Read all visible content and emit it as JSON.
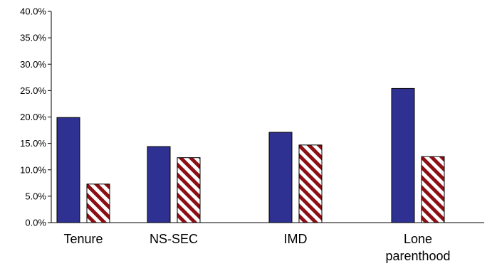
{
  "chart_data": {
    "type": "bar",
    "categories": [
      "Tenure",
      "NS-SEC",
      "IMD",
      "Lone parenthood"
    ],
    "category_label_lines": [
      [
        "Tenure"
      ],
      [
        "NS-SEC"
      ],
      [
        "IMD"
      ],
      [
        "Lone",
        "parenthood"
      ]
    ],
    "series": [
      {
        "values": [
          19.9,
          14.4,
          17.1,
          25.4
        ],
        "color": "#2e3192",
        "pattern": "solid"
      },
      {
        "values": [
          7.3,
          12.3,
          14.7,
          12.5
        ],
        "color": "#8b0f14",
        "pattern": "diagonal-hatch"
      }
    ],
    "title": "",
    "xlabel": "",
    "ylabel": "",
    "ylim": [
      0,
      40
    ],
    "y_ticks": [
      "0.0%",
      "5.0%",
      "10.0%",
      "15.0%",
      "20.0%",
      "25.0%",
      "30.0%",
      "35.0%",
      "40.0%"
    ],
    "grid": false,
    "legend": "none"
  }
}
